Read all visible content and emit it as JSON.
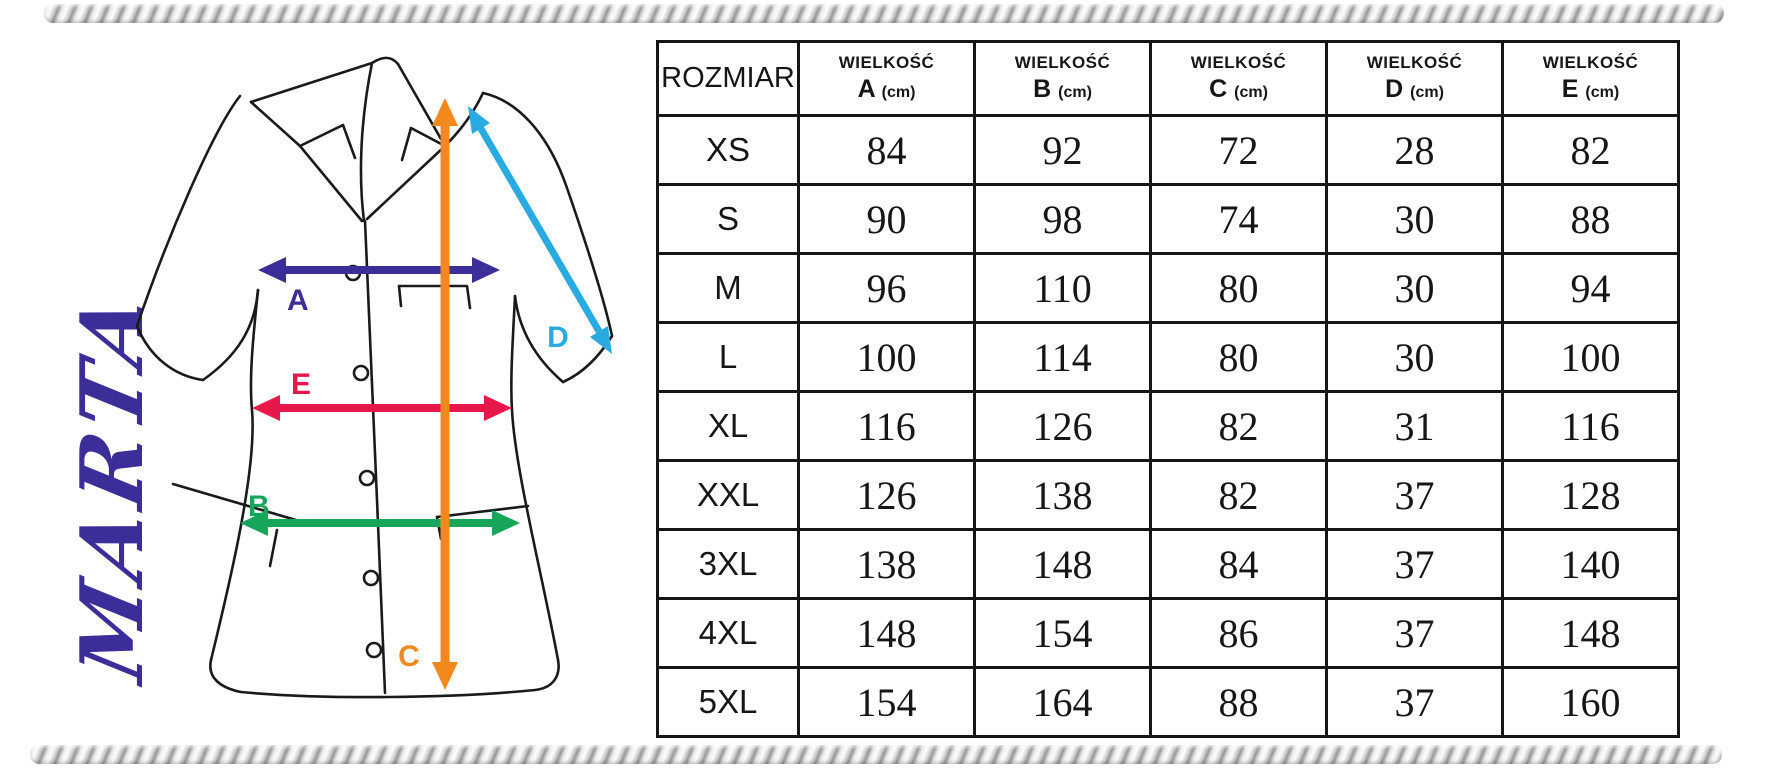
{
  "brand": {
    "name": "MARTA"
  },
  "colors": {
    "brand_text": "#3b2e98",
    "outline": "#1a1a1a",
    "measure_a": "#3b2e98",
    "measure_b": "#17a65a",
    "measure_c": "#f3891d",
    "measure_d": "#29abe2",
    "measure_e": "#e8174b"
  },
  "diagram": {
    "labels": {
      "a": "A",
      "b": "B",
      "c": "C",
      "d": "D",
      "e": "E"
    }
  },
  "table": {
    "size_col_header": "ROZMIAR",
    "dim_header_word": "WIELKOŚĆ",
    "unit_suffix": "(cm)",
    "dim_letters": [
      "A",
      "B",
      "C",
      "D",
      "E"
    ],
    "rows": [
      {
        "size": "XS",
        "values": [
          "84",
          "92",
          "72",
          "28",
          "82"
        ]
      },
      {
        "size": "S",
        "values": [
          "90",
          "98",
          "74",
          "30",
          "88"
        ]
      },
      {
        "size": "M",
        "values": [
          "96",
          "110",
          "80",
          "30",
          "94"
        ]
      },
      {
        "size": "L",
        "values": [
          "100",
          "114",
          "80",
          "30",
          "100"
        ]
      },
      {
        "size": "XL",
        "values": [
          "116",
          "126",
          "82",
          "31",
          "116"
        ]
      },
      {
        "size": "XXL",
        "values": [
          "126",
          "138",
          "82",
          "37",
          "128"
        ]
      },
      {
        "size": "3XL",
        "values": [
          "138",
          "148",
          "84",
          "37",
          "140"
        ]
      },
      {
        "size": "4XL",
        "values": [
          "148",
          "154",
          "86",
          "37",
          "148"
        ]
      },
      {
        "size": "5XL",
        "values": [
          "154",
          "164",
          "88",
          "37",
          "160"
        ]
      }
    ]
  },
  "chart_data": {
    "type": "table",
    "columns": [
      "ROZMIAR",
      "WIELKOŚĆ A (cm)",
      "WIELKOŚĆ B (cm)",
      "WIELKOŚĆ C (cm)",
      "WIELKOŚĆ D (cm)",
      "WIELKOŚĆ E (cm)"
    ],
    "rows": [
      [
        "XS",
        84,
        92,
        72,
        28,
        82
      ],
      [
        "S",
        90,
        98,
        74,
        30,
        88
      ],
      [
        "M",
        96,
        110,
        80,
        30,
        94
      ],
      [
        "L",
        100,
        114,
        80,
        30,
        100
      ],
      [
        "XL",
        116,
        126,
        82,
        31,
        116
      ],
      [
        "XXL",
        126,
        138,
        82,
        37,
        128
      ],
      [
        "3XL",
        138,
        148,
        84,
        37,
        140
      ],
      [
        "4XL",
        148,
        154,
        86,
        37,
        148
      ],
      [
        "5XL",
        154,
        164,
        88,
        37,
        160
      ]
    ]
  }
}
